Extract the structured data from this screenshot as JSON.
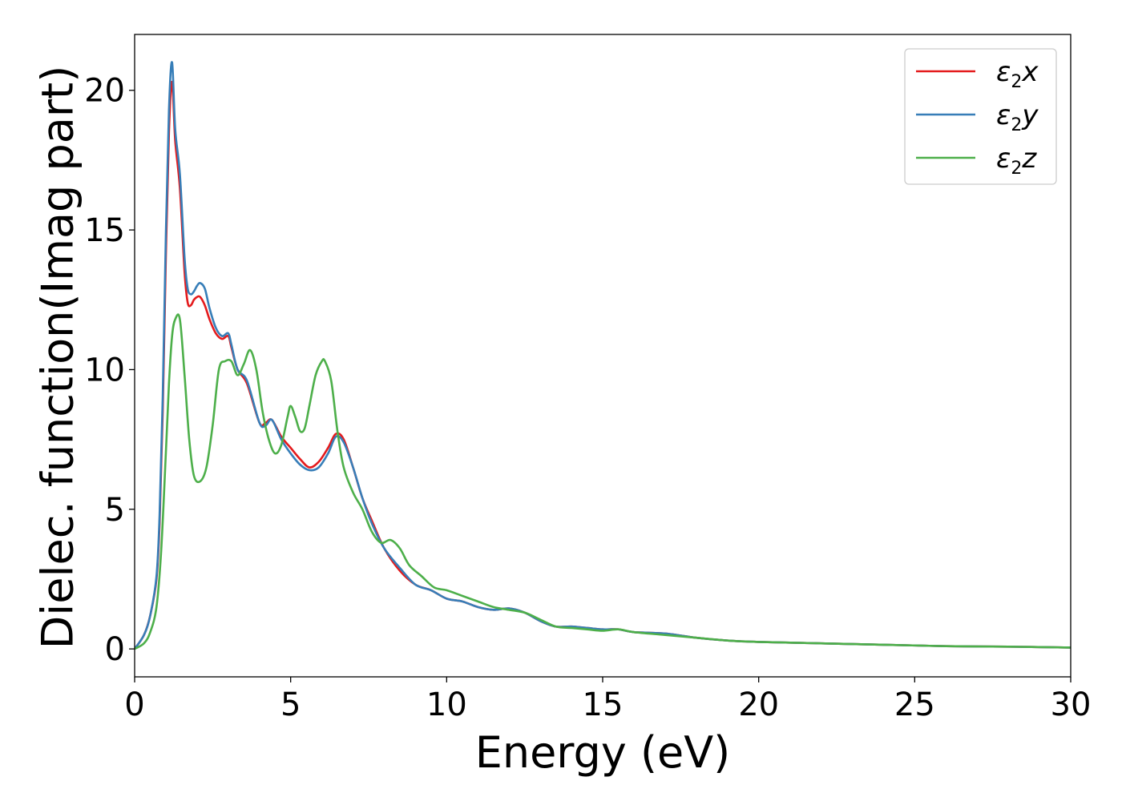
{
  "chart_data": {
    "type": "line",
    "title": "",
    "xlabel": "Energy (eV)",
    "ylabel": "Dielec. function(Imag part)",
    "xlim": [
      0,
      30
    ],
    "ylim": [
      -1,
      22
    ],
    "xticks": [
      0,
      5,
      10,
      15,
      20,
      25,
      30
    ],
    "yticks": [
      0,
      5,
      10,
      15,
      20
    ],
    "xtick_labels": [
      "0",
      "5",
      "10",
      "15",
      "20",
      "25",
      "30"
    ],
    "ytick_labels": [
      "0",
      "5",
      "10",
      "15",
      "20"
    ],
    "grid": false,
    "legend_position": "top-right",
    "series": [
      {
        "name": "ε2x",
        "legend_base": "ε",
        "legend_sub": "2",
        "legend_suffix": "x",
        "color": "#e41a1c",
        "x": [
          0,
          0.3,
          0.5,
          0.7,
          0.8,
          0.9,
          1.0,
          1.1,
          1.2,
          1.3,
          1.45,
          1.6,
          1.7,
          1.8,
          1.9,
          2.0,
          2.1,
          2.25,
          2.4,
          2.6,
          2.8,
          3.0,
          3.1,
          3.3,
          3.6,
          4.0,
          4.2,
          4.4,
          4.7,
          5.0,
          5.3,
          5.6,
          5.9,
          6.2,
          6.45,
          6.7,
          7.0,
          7.3,
          7.6,
          8.0,
          8.5,
          9.0,
          9.5,
          10.0,
          10.5,
          11.0,
          11.5,
          12.0,
          12.5,
          13.0,
          13.5,
          14.0,
          14.5,
          15.0,
          15.5,
          16.0,
          17.0,
          18.0,
          19.0,
          20.0,
          22.0,
          24.0,
          26.0,
          28.0,
          30.0
        ],
        "y": [
          0,
          0.5,
          1.2,
          2.5,
          4.5,
          8.5,
          14.0,
          18.5,
          20.3,
          18.2,
          16.5,
          13.5,
          12.4,
          12.3,
          12.5,
          12.6,
          12.6,
          12.3,
          11.8,
          11.3,
          11.1,
          11.2,
          10.8,
          10.0,
          9.5,
          8.1,
          8.1,
          8.2,
          7.6,
          7.2,
          6.8,
          6.5,
          6.7,
          7.2,
          7.7,
          7.5,
          6.5,
          5.4,
          4.6,
          3.6,
          2.8,
          2.3,
          2.1,
          1.8,
          1.7,
          1.5,
          1.4,
          1.45,
          1.3,
          1.0,
          0.8,
          0.8,
          0.75,
          0.7,
          0.7,
          0.6,
          0.55,
          0.4,
          0.3,
          0.25,
          0.2,
          0.15,
          0.1,
          0.08,
          0.05
        ]
      },
      {
        "name": "ε2y",
        "legend_base": "ε",
        "legend_sub": "2",
        "legend_suffix": "y",
        "color": "#377eb8",
        "x": [
          0,
          0.3,
          0.5,
          0.7,
          0.8,
          0.9,
          1.0,
          1.1,
          1.2,
          1.3,
          1.45,
          1.6,
          1.7,
          1.8,
          1.9,
          2.0,
          2.1,
          2.25,
          2.4,
          2.6,
          2.8,
          3.0,
          3.1,
          3.3,
          3.6,
          4.0,
          4.2,
          4.4,
          4.7,
          5.0,
          5.3,
          5.6,
          5.9,
          6.2,
          6.45,
          6.7,
          7.0,
          7.3,
          7.6,
          8.0,
          8.5,
          9.0,
          9.5,
          10.0,
          10.5,
          11.0,
          11.5,
          12.0,
          12.5,
          13.0,
          13.5,
          14.0,
          14.5,
          15.0,
          15.5,
          16.0,
          17.0,
          18.0,
          19.0,
          20.0,
          22.0,
          24.0,
          26.0,
          28.0,
          30.0
        ],
        "y": [
          0,
          0.5,
          1.2,
          2.6,
          4.8,
          9.0,
          14.8,
          19.3,
          21.0,
          18.6,
          17.0,
          14.0,
          12.9,
          12.7,
          12.8,
          13.0,
          13.1,
          12.9,
          12.2,
          11.5,
          11.2,
          11.3,
          10.9,
          10.0,
          9.6,
          8.1,
          8.0,
          8.2,
          7.5,
          7.0,
          6.6,
          6.4,
          6.5,
          7.0,
          7.6,
          7.4,
          6.5,
          5.4,
          4.5,
          3.6,
          2.9,
          2.3,
          2.1,
          1.8,
          1.7,
          1.5,
          1.4,
          1.45,
          1.3,
          1.0,
          0.8,
          0.8,
          0.75,
          0.7,
          0.7,
          0.6,
          0.55,
          0.4,
          0.3,
          0.25,
          0.2,
          0.15,
          0.1,
          0.08,
          0.05
        ]
      },
      {
        "name": "ε2z",
        "legend_base": "ε",
        "legend_sub": "2",
        "legend_suffix": "z",
        "color": "#4daf4a",
        "x": [
          0,
          0.3,
          0.5,
          0.7,
          0.85,
          1.0,
          1.1,
          1.2,
          1.3,
          1.45,
          1.6,
          1.75,
          1.9,
          2.1,
          2.3,
          2.5,
          2.7,
          2.9,
          3.1,
          3.3,
          3.5,
          3.7,
          3.9,
          4.1,
          4.3,
          4.5,
          4.7,
          4.9,
          5.0,
          5.15,
          5.3,
          5.45,
          5.6,
          5.8,
          6.0,
          6.1,
          6.3,
          6.5,
          6.7,
          7.0,
          7.3,
          7.6,
          7.9,
          8.2,
          8.5,
          8.8,
          9.2,
          9.6,
          10.0,
          10.5,
          11.0,
          11.5,
          12.0,
          12.5,
          13.0,
          13.5,
          14.0,
          14.5,
          15.0,
          15.5,
          16.0,
          17.0,
          18.0,
          19.0,
          20.0,
          22.0,
          24.0,
          26.0,
          28.0,
          30.0
        ],
        "y": [
          0,
          0.2,
          0.6,
          1.5,
          3.5,
          7.0,
          9.5,
          11.2,
          11.8,
          11.8,
          9.8,
          7.5,
          6.2,
          6.0,
          6.5,
          8.0,
          10.0,
          10.3,
          10.3,
          9.8,
          10.2,
          10.7,
          10.0,
          8.5,
          7.5,
          7.0,
          7.3,
          8.3,
          8.7,
          8.3,
          7.8,
          7.9,
          8.7,
          9.8,
          10.3,
          10.3,
          9.6,
          7.8,
          6.5,
          5.6,
          5.0,
          4.2,
          3.8,
          3.9,
          3.6,
          3.0,
          2.6,
          2.2,
          2.1,
          1.9,
          1.7,
          1.5,
          1.4,
          1.3,
          1.05,
          0.8,
          0.75,
          0.7,
          0.65,
          0.7,
          0.6,
          0.5,
          0.4,
          0.3,
          0.25,
          0.2,
          0.15,
          0.1,
          0.08,
          0.05
        ]
      }
    ]
  }
}
